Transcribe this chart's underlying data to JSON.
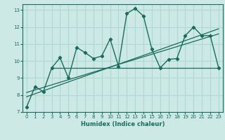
{
  "xlabel": "Humidex (Indice chaleur)",
  "xlim": [
    -0.5,
    23.5
  ],
  "ylim": [
    7,
    13.35
  ],
  "xticks": [
    0,
    1,
    2,
    3,
    4,
    5,
    6,
    7,
    8,
    9,
    10,
    11,
    12,
    13,
    14,
    15,
    16,
    17,
    18,
    19,
    20,
    21,
    22,
    23
  ],
  "yticks": [
    7,
    8,
    9,
    10,
    11,
    12,
    13
  ],
  "bg_color": "#cce9e5",
  "grid_color": "#b0d8d2",
  "line_color": "#1a6b5e",
  "data_x": [
    0,
    1,
    2,
    3,
    4,
    5,
    6,
    7,
    8,
    9,
    10,
    11,
    12,
    13,
    14,
    15,
    16,
    17,
    18,
    19,
    20,
    21,
    22,
    23
  ],
  "data_y": [
    7.3,
    8.5,
    8.2,
    9.6,
    10.2,
    9.0,
    10.8,
    10.5,
    10.15,
    10.3,
    11.3,
    9.7,
    12.8,
    13.1,
    12.65,
    10.7,
    9.6,
    10.1,
    10.15,
    11.5,
    12.0,
    11.5,
    11.5,
    9.6
  ],
  "flat_line_x": [
    3,
    23
  ],
  "flat_line_y": [
    9.6,
    9.6
  ],
  "reg_line1_x": [
    0,
    23
  ],
  "reg_line1_y": [
    7.9,
    11.9
  ],
  "reg_line2_x": [
    0,
    23
  ],
  "reg_line2_y": [
    8.15,
    11.6
  ]
}
